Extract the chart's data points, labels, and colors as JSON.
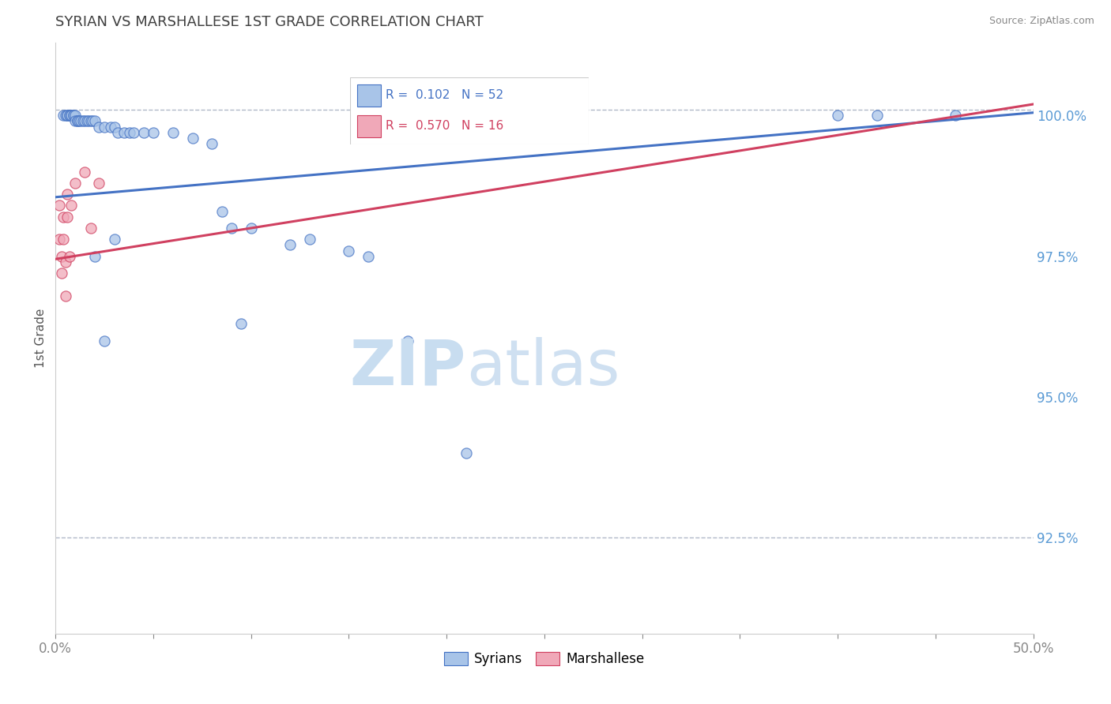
{
  "title": "SYRIAN VS MARSHALLESE 1ST GRADE CORRELATION CHART",
  "source": "Source: ZipAtlas.com",
  "ylabel": "1st Grade",
  "ytick_labels": [
    "92.5%",
    "95.0%",
    "97.5%",
    "100.0%"
  ],
  "ytick_values": [
    0.925,
    0.95,
    0.975,
    1.0
  ],
  "xmin": 0.0,
  "xmax": 0.5,
  "ymin": 0.908,
  "ymax": 1.013,
  "legend_r_blue": "R =  0.102",
  "legend_n_blue": "N = 52",
  "legend_r_pink": "R =  0.570",
  "legend_n_pink": "N = 16",
  "color_blue": "#a8c4e8",
  "color_pink": "#f0a8b8",
  "line_blue": "#4472c4",
  "line_pink": "#d04060",
  "dashed_line_y": 1.001,
  "syrians_x": [
    0.004,
    0.005,
    0.006,
    0.006,
    0.007,
    0.007,
    0.008,
    0.008,
    0.009,
    0.009,
    0.01,
    0.01,
    0.011,
    0.011,
    0.012,
    0.013,
    0.014,
    0.015,
    0.016,
    0.017,
    0.018,
    0.019,
    0.02,
    0.022,
    0.025,
    0.028,
    0.03,
    0.032,
    0.035,
    0.038,
    0.04,
    0.045,
    0.05,
    0.06,
    0.07,
    0.08,
    0.085,
    0.09,
    0.095,
    0.1,
    0.12,
    0.13,
    0.15,
    0.16,
    0.18,
    0.21,
    0.02,
    0.025,
    0.03,
    0.4,
    0.42,
    0.46
  ],
  "syrians_y": [
    1.0,
    1.0,
    1.0,
    1.0,
    1.0,
    1.0,
    1.0,
    1.0,
    1.0,
    1.0,
    1.0,
    0.999,
    0.999,
    0.999,
    0.999,
    0.999,
    0.999,
    0.999,
    0.999,
    0.999,
    0.999,
    0.999,
    0.999,
    0.998,
    0.998,
    0.998,
    0.998,
    0.997,
    0.997,
    0.997,
    0.997,
    0.997,
    0.997,
    0.997,
    0.996,
    0.995,
    0.983,
    0.98,
    0.963,
    0.98,
    0.977,
    0.978,
    0.976,
    0.975,
    0.96,
    0.94,
    0.975,
    0.96,
    0.978,
    1.0,
    1.0,
    1.0
  ],
  "marshallese_x": [
    0.002,
    0.002,
    0.003,
    0.003,
    0.004,
    0.004,
    0.005,
    0.005,
    0.006,
    0.006,
    0.007,
    0.008,
    0.01,
    0.015,
    0.018,
    0.022
  ],
  "marshallese_y": [
    0.984,
    0.978,
    0.975,
    0.972,
    0.982,
    0.978,
    0.974,
    0.968,
    0.982,
    0.986,
    0.975,
    0.984,
    0.988,
    0.99,
    0.98,
    0.988
  ],
  "blue_line_x": [
    0.0,
    0.5
  ],
  "blue_line_y": [
    0.9855,
    1.0005
  ],
  "pink_line_x": [
    0.0,
    0.5
  ],
  "pink_line_y": [
    0.9745,
    1.002
  ]
}
